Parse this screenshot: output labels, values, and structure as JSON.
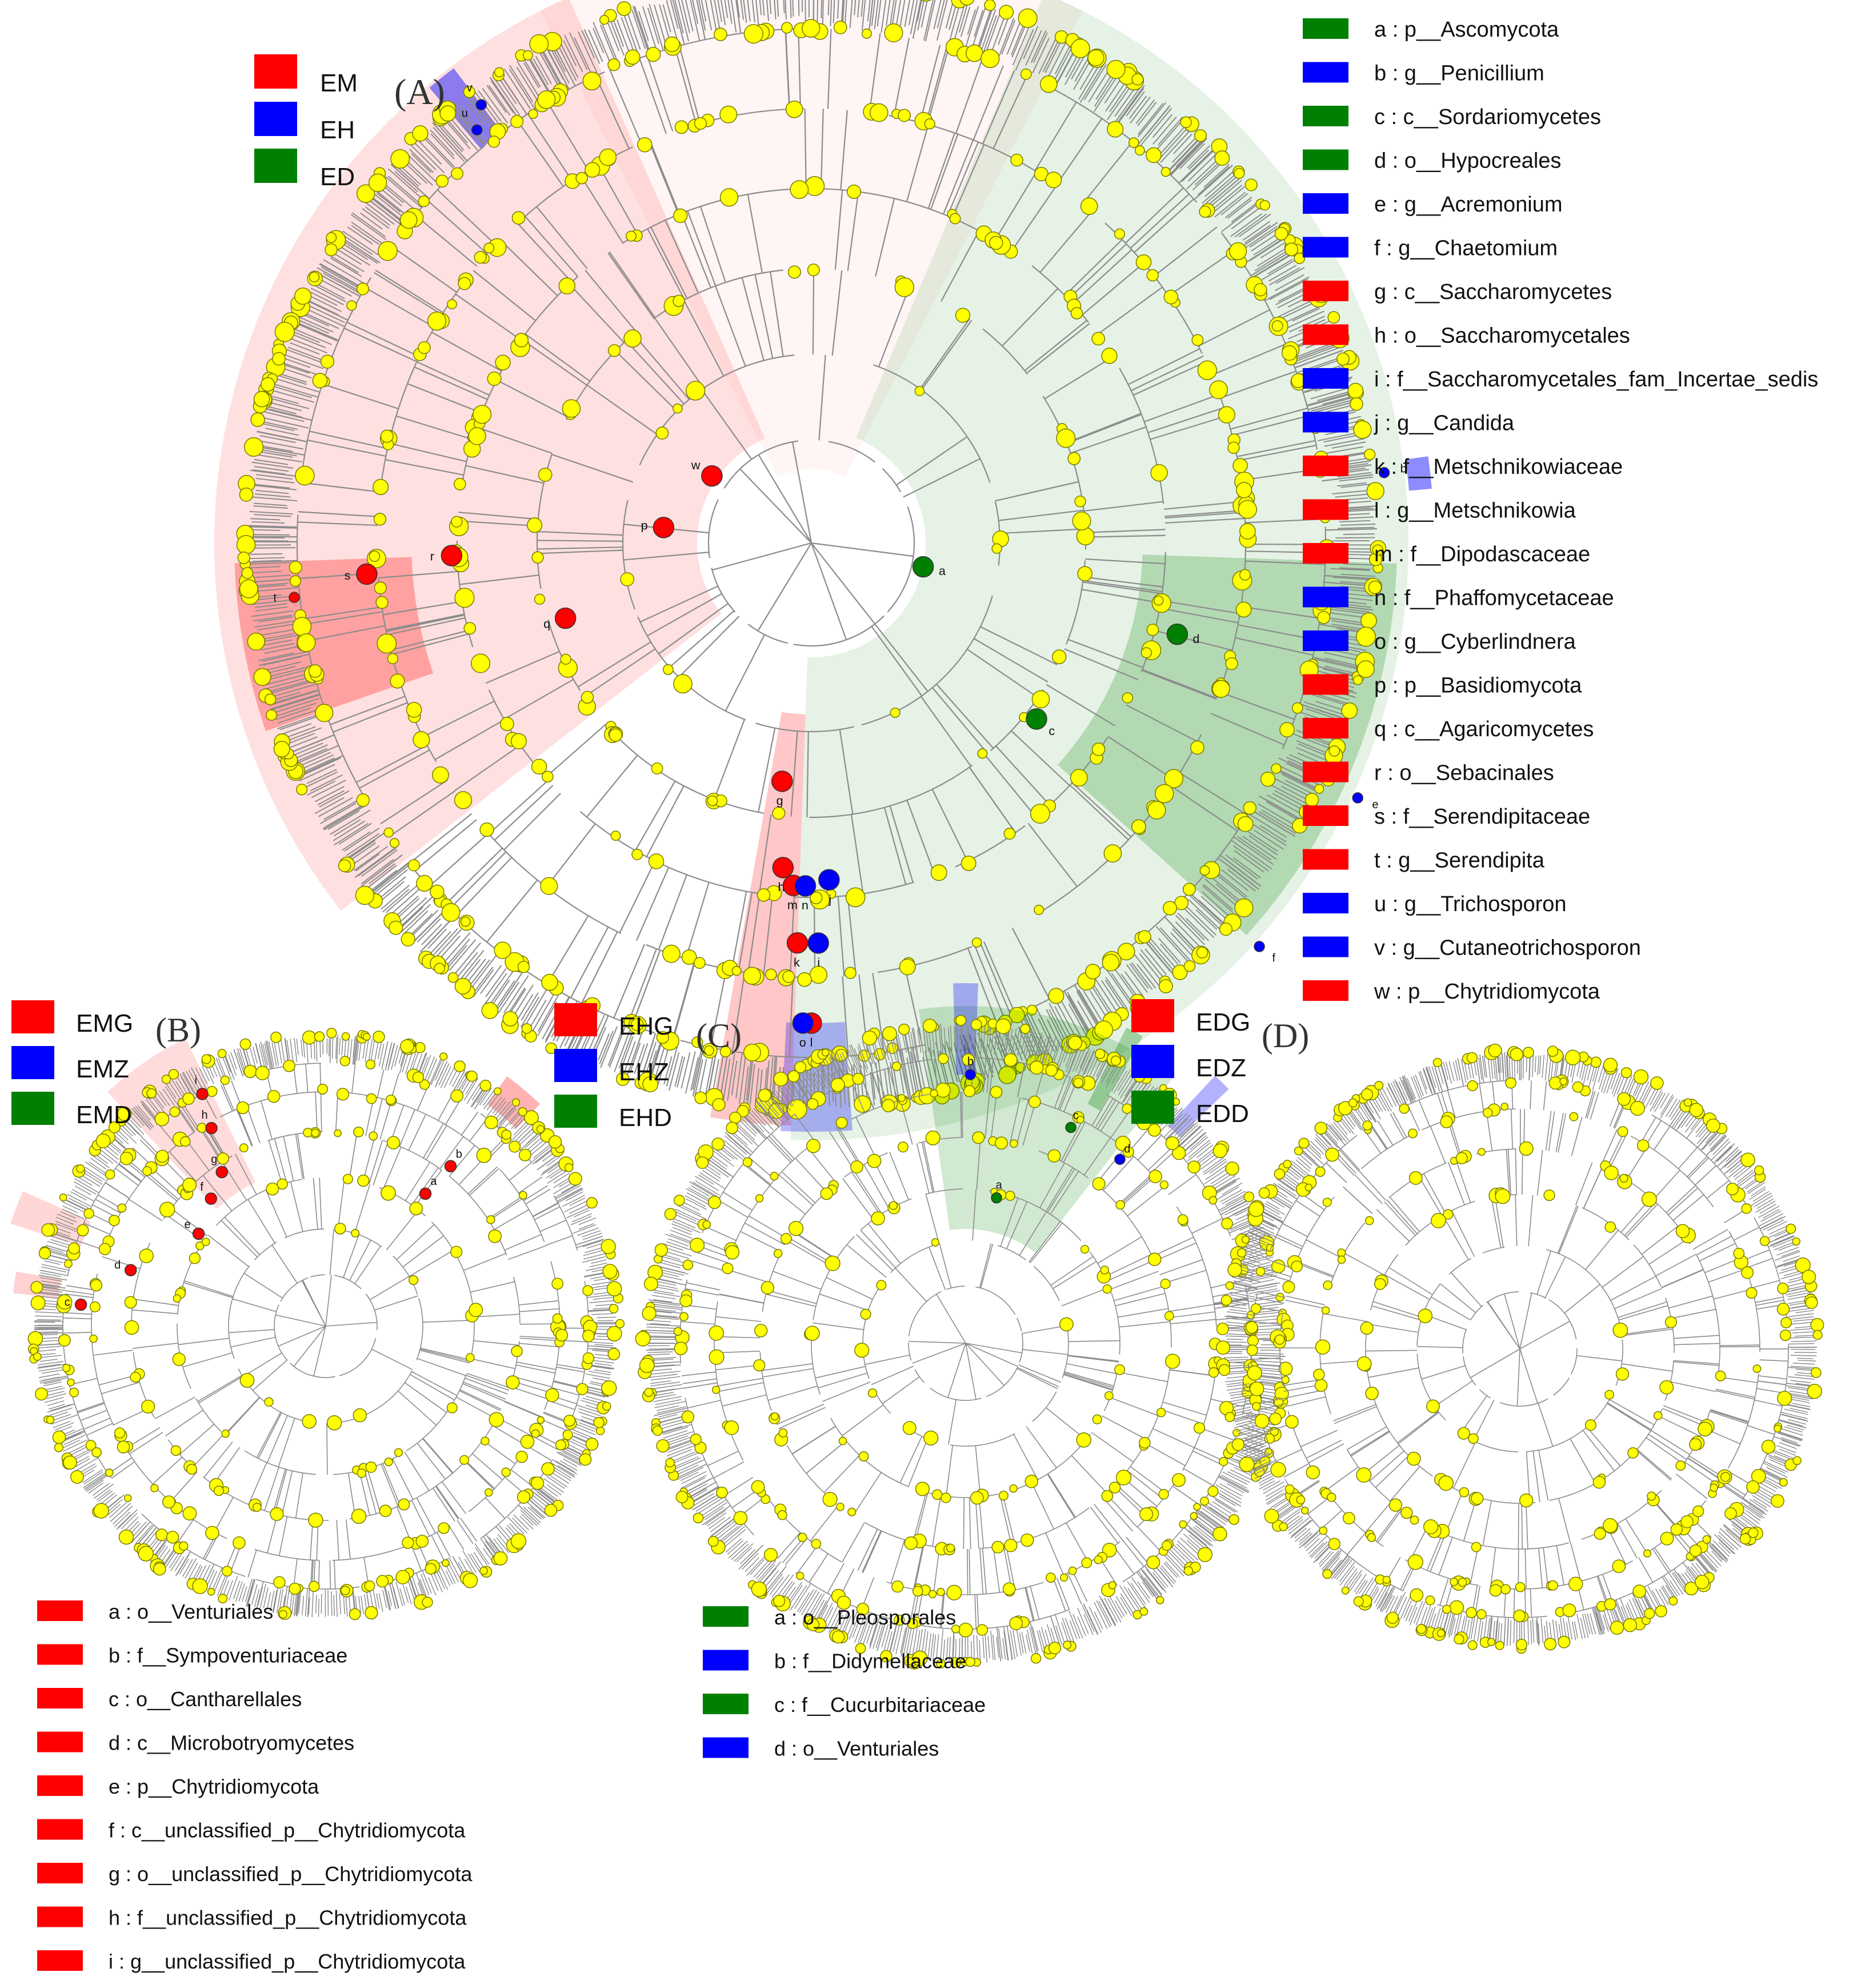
{
  "colors": {
    "red": "#ff0000",
    "blue": "#0000ff",
    "green": "#008000",
    "node": "#ffff00",
    "branch": "#8c8c8c",
    "hl_red": "#ff9a9a",
    "hl_blue": "#9a9aff",
    "hl_green": "#8fcf8f"
  },
  "panels": [
    {
      "id": "A",
      "title": "(A)",
      "groups": [
        {
          "label": "EM",
          "color": "red"
        },
        {
          "label": "EH",
          "color": "blue"
        },
        {
          "label": "ED",
          "color": "green"
        }
      ],
      "legend": [
        {
          "key": "a",
          "text": "a : p__Ascomycota",
          "color": "green"
        },
        {
          "key": "b",
          "text": "b : g__Penicillium",
          "color": "blue"
        },
        {
          "key": "c",
          "text": "c : c__Sordariomycetes",
          "color": "green"
        },
        {
          "key": "d",
          "text": "d : o__Hypocreales",
          "color": "green"
        },
        {
          "key": "e",
          "text": "e : g__Acremonium",
          "color": "blue"
        },
        {
          "key": "f",
          "text": "f : g__Chaetomium",
          "color": "blue"
        },
        {
          "key": "g",
          "text": "g : c__Saccharomycetes",
          "color": "red"
        },
        {
          "key": "h",
          "text": "h : o__Saccharomycetales",
          "color": "red"
        },
        {
          "key": "i",
          "text": "i : f__Saccharomycetales_fam_Incertae_sedis",
          "color": "blue"
        },
        {
          "key": "j",
          "text": "j : g__Candida",
          "color": "blue"
        },
        {
          "key": "k",
          "text": "k : f__Metschnikowiaceae",
          "color": "red"
        },
        {
          "key": "l",
          "text": "l : g__Metschnikowia",
          "color": "red"
        },
        {
          "key": "m",
          "text": "m : f__Dipodascaceae",
          "color": "red"
        },
        {
          "key": "n",
          "text": "n : f__Phaffomycetaceae",
          "color": "blue"
        },
        {
          "key": "o",
          "text": "o : g__Cyberlindnera",
          "color": "blue"
        },
        {
          "key": "p",
          "text": "p : p__Basidiomycota",
          "color": "red"
        },
        {
          "key": "q",
          "text": "q : c__Agaricomycetes",
          "color": "red"
        },
        {
          "key": "r",
          "text": "r : o__Sebacinales",
          "color": "red"
        },
        {
          "key": "s",
          "text": "s : f__Serendipitaceae",
          "color": "red"
        },
        {
          "key": "t",
          "text": "t : g__Serendipita",
          "color": "red"
        },
        {
          "key": "u",
          "text": "u : g__Trichosporon",
          "color": "blue"
        },
        {
          "key": "v",
          "text": "v : g__Cutaneotrichosporon",
          "color": "blue"
        },
        {
          "key": "w",
          "text": "w : p__Chytridiomycota",
          "color": "red"
        }
      ]
    },
    {
      "id": "B",
      "title": "(B)",
      "groups": [
        {
          "label": "EMG",
          "color": "red"
        },
        {
          "label": "EMZ",
          "color": "blue"
        },
        {
          "label": "EMD",
          "color": "green"
        }
      ],
      "legend": [
        {
          "key": "a",
          "text": "a : o__Venturiales",
          "color": "red"
        },
        {
          "key": "b",
          "text": "b : f__Sympoventuriaceae",
          "color": "red"
        },
        {
          "key": "c",
          "text": "c : o__Cantharellales",
          "color": "red"
        },
        {
          "key": "d",
          "text": "d : c__Microbotryomycetes",
          "color": "red"
        },
        {
          "key": "e",
          "text": "e : p__Chytridiomycota",
          "color": "red"
        },
        {
          "key": "f",
          "text": "f : c__unclassified_p__Chytridiomycota",
          "color": "red"
        },
        {
          "key": "g",
          "text": "g : o__unclassified_p__Chytridiomycota",
          "color": "red"
        },
        {
          "key": "h",
          "text": "h : f__unclassified_p__Chytridiomycota",
          "color": "red"
        },
        {
          "key": "i",
          "text": "i : g__unclassified_p__Chytridiomycota",
          "color": "red"
        }
      ]
    },
    {
      "id": "C",
      "title": "(C)",
      "groups": [
        {
          "label": "EHG",
          "color": "red"
        },
        {
          "label": "EHZ",
          "color": "blue"
        },
        {
          "label": "EHD",
          "color": "green"
        }
      ],
      "legend": [
        {
          "key": "a",
          "text": "a : o__Pleosporales",
          "color": "green"
        },
        {
          "key": "b",
          "text": "b : f__Didymellaceae",
          "color": "blue"
        },
        {
          "key": "c",
          "text": "c : f__Cucurbitariaceae",
          "color": "green"
        },
        {
          "key": "d",
          "text": "d : o__Venturiales",
          "color": "blue"
        }
      ]
    },
    {
      "id": "D",
      "title": "(D)",
      "groups": [
        {
          "label": "EDG",
          "color": "red"
        },
        {
          "label": "EDZ",
          "color": "blue"
        },
        {
          "label": "EDD",
          "color": "green"
        }
      ],
      "legend": []
    }
  ]
}
